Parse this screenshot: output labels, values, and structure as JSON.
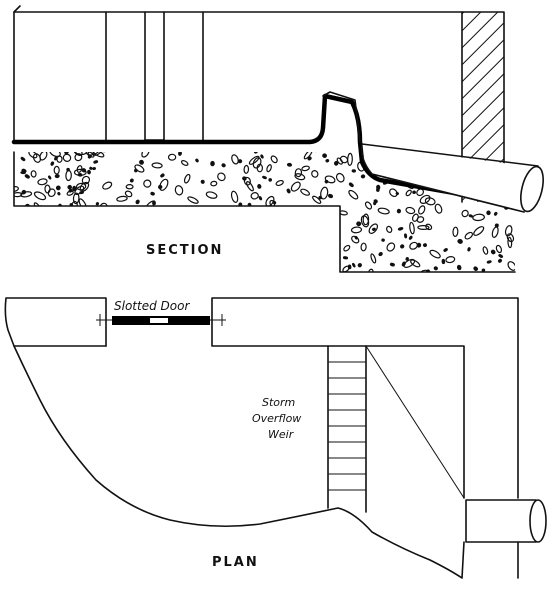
{
  "labels": {
    "section": "SECTION",
    "plan": "PLAN",
    "slotted_door": "Slotted Door",
    "weir_line1": "Storm",
    "weir_line2": "Overflow",
    "weir_line3": "Weir"
  }
}
